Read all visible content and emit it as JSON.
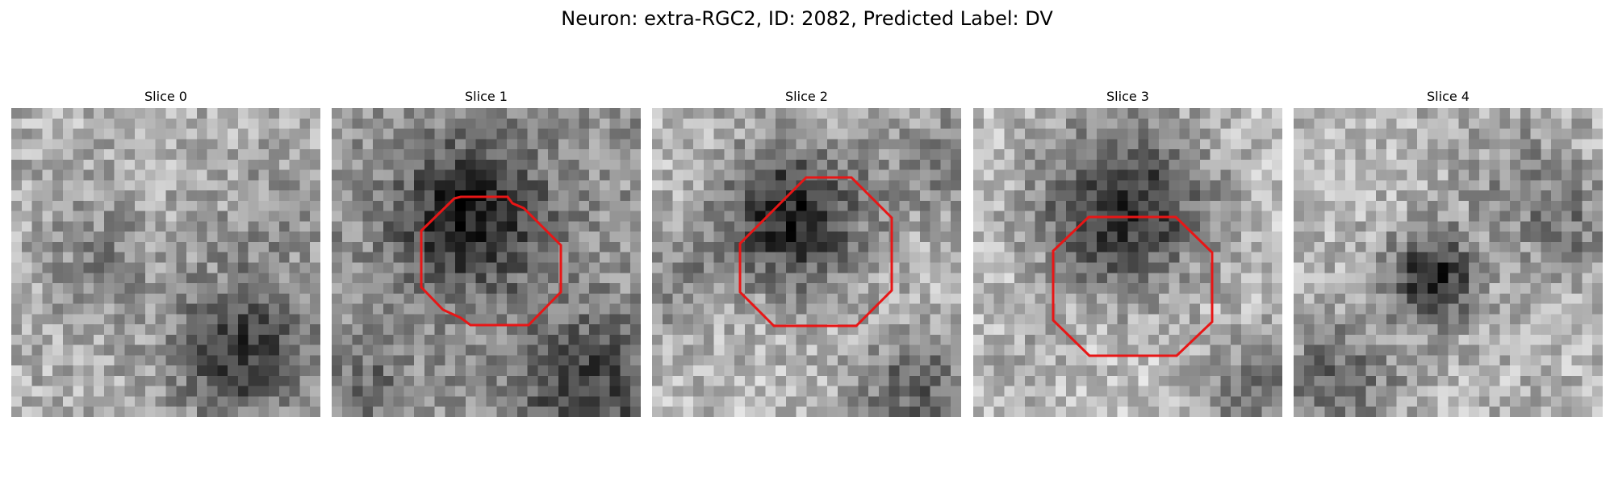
{
  "figure": {
    "title": "Neuron: extra-RGC2, ID: 2082, Predicted Label: DV"
  },
  "colors": {
    "contour": "#e81616",
    "background": "#ffffff",
    "colormap": "gray"
  },
  "slices": [
    {
      "title": "Slice 0",
      "has_contour": false
    },
    {
      "title": "Slice 1",
      "has_contour": true
    },
    {
      "title": "Slice 2",
      "has_contour": true
    },
    {
      "title": "Slice 3",
      "has_contour": true
    },
    {
      "title": "Slice 4",
      "has_contour": false
    }
  ]
}
